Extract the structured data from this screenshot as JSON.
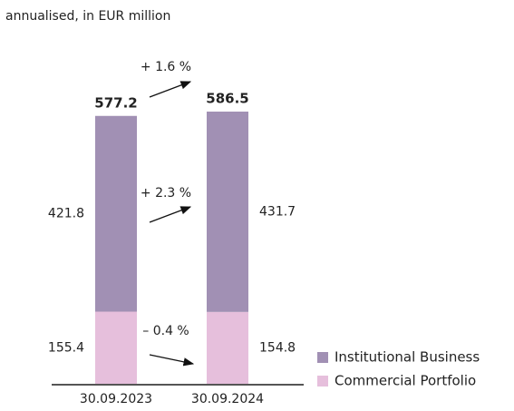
{
  "chart_data": {
    "type": "stacked_bar",
    "subtitle": "annualised, in EUR million",
    "categories": [
      "30.09.2023",
      "30.09.2024"
    ],
    "series": [
      {
        "name": "Institutional Business",
        "color": "#a190b4",
        "values": [
          421.8,
          431.7
        ]
      },
      {
        "name": "Commercial Portfolio",
        "color": "#e6bfdc",
        "values": [
          155.4,
          154.8
        ]
      }
    ],
    "totals": [
      577.2,
      586.5
    ],
    "annotations": [
      "+ 1.6 %",
      "+ 2.3 %",
      "– 0.4 %"
    ]
  }
}
